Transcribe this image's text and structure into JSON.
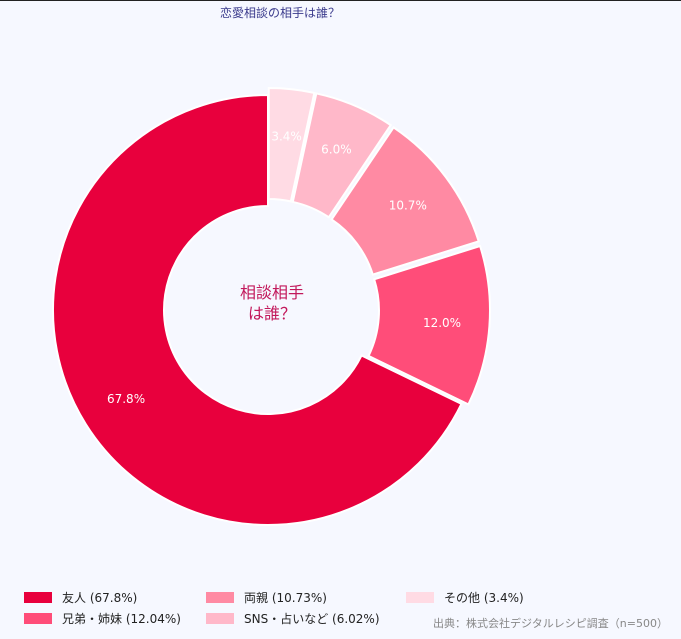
{
  "chart_data": {
    "type": "pie",
    "title": "恋愛相談の相手は誰？",
    "center_label": [
      "相談相手",
      "は誰？"
    ],
    "categories": [
      "友人",
      "兄弟・姉妹",
      "両親",
      "SNS・占いなど",
      "その他"
    ],
    "values": [
      67.8,
      12.04,
      10.73,
      6.02,
      3.4
    ],
    "slice_labels": [
      "67.8%",
      "12.0%",
      "10.7%",
      "6.0%",
      "3.4%"
    ],
    "legend_labels": [
      "友人 (67.8%)",
      "兄弟・姉妹 (12.04%)",
      "両親 (10.73%)",
      "SNS・占いなど (6.02%)",
      "その他 (3.4%)"
    ],
    "colors": [
      "#e8003d",
      "#ff4d79",
      "#ff8aa3",
      "#ffb8c9",
      "#ffdbe4"
    ],
    "legend_placement": "bottom-left",
    "donut": true
  },
  "source": "出典：株式会社デジタルレシピ調査（n=500）"
}
